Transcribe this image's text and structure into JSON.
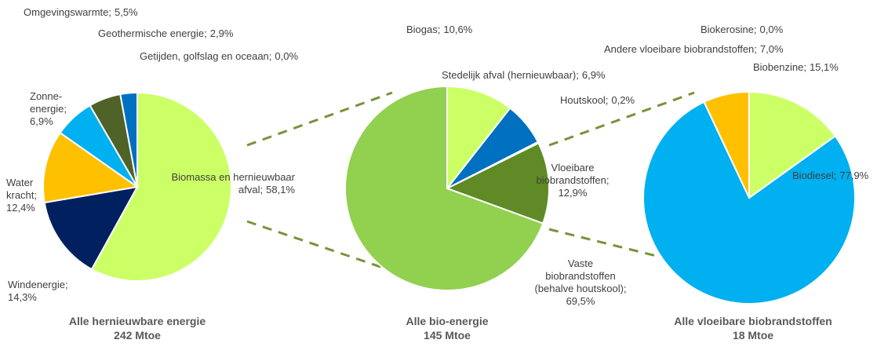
{
  "chart_data": [
    {
      "type": "pie",
      "title": "Alle hernieuwbare energie",
      "subtitle": "242 Mtoe",
      "categories": [
        "Biomassa en hernieuwbaar\nafval;",
        "Windenergie;",
        "Water\nkracht;",
        "Zonne-\nenergie;",
        "Omgevingswarmte;",
        "Geothermische energie;",
        "Getijden, golfslag en oceaan;"
      ],
      "values": [
        58.1,
        14.3,
        12.4,
        6.9,
        5.5,
        2.9,
        0.0
      ],
      "value_labels": [
        "58,1%",
        "14,3%",
        "12,4%",
        "6,9%",
        "5,5%",
        "2,9%",
        "0,0%"
      ],
      "colors": [
        "#ccff66",
        "#002060",
        "#ffc000",
        "#00b0f0",
        "#4f6228",
        "#0070c0",
        "#7f7f7f"
      ]
    },
    {
      "type": "pie",
      "title": "Alle bio-energie",
      "subtitle": "145 Mtoe",
      "categories": [
        "Biogas;",
        "Stedelijk afval (hernieuwbaar);",
        "Houtskool;",
        "Vloeibare\nbiobrandstoffen;",
        "Vaste\nbiobrandstoffen\n(behalve houtskool);"
      ],
      "values": [
        10.6,
        6.9,
        0.2,
        12.9,
        69.5
      ],
      "value_labels": [
        "10,6%",
        "6,9%",
        "0,2%",
        "12,9%",
        "69,5%"
      ],
      "colors": [
        "#ccff66",
        "#0070c0",
        "#002060",
        "#5f8a25",
        "#92d050"
      ]
    },
    {
      "type": "pie",
      "title": "Alle vloeibare biobrandstoffen",
      "subtitle": "18 Mtoe",
      "categories": [
        "Biobenzine;",
        "Biodiesel;",
        "Andere vloeibare biobrandstoffen;",
        "Biokerosine;"
      ],
      "values": [
        15.1,
        77.9,
        7.0,
        0.0
      ],
      "value_labels": [
        "15,1%",
        "77,9%",
        "7,0%",
        "0,0%"
      ],
      "colors": [
        "#ccff66",
        "#00b0f0",
        "#ffc000",
        "#7f7f7f"
      ]
    }
  ]
}
